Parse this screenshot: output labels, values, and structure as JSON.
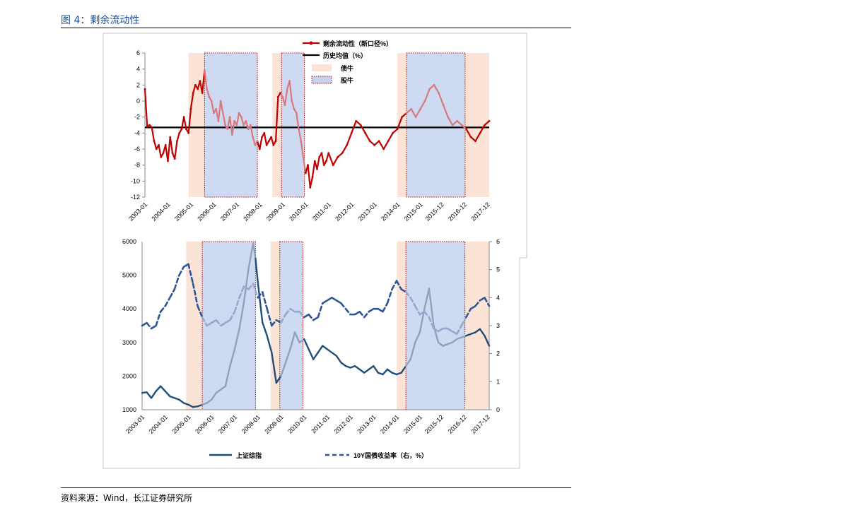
{
  "figure": {
    "title": "图 4：剩余流动性",
    "source": "资料来源：Wind，长江证券研究所"
  },
  "colors": {
    "liquidity": "#c00000",
    "liquidity_faded": "#d9797f",
    "hist_avg": "#000000",
    "index": "#1f4e79",
    "index_faded": "#8fa3b8",
    "yield": "#2f5597",
    "yield_faded": "#96a8cb",
    "bond_bull": "#fbe4d5",
    "stock_bull": "#c5d3ee",
    "stock_border": "#c00000"
  },
  "periods": {
    "bond_bull": [
      [
        2004.9,
        2005.6
      ],
      [
        2008.55,
        2009.0
      ],
      [
        2014.0,
        2014.4
      ],
      [
        2016.85,
        2017.9
      ],
      [
        2017.45,
        2018.0
      ]
    ],
    "stock_bull": [
      [
        2005.6,
        2007.9
      ],
      [
        2008.95,
        2009.95
      ],
      [
        2014.4,
        2016.95
      ]
    ]
  },
  "chart_data": [
    {
      "type": "line",
      "x_ticks": [
        "2003-01",
        "2004-01",
        "2005-01",
        "2006-01",
        "2007-01",
        "2008-01",
        "2009-01",
        "2010-01",
        "2011-01",
        "2012-01",
        "2013-01",
        "2014-01",
        "2015-01",
        "2015-12",
        "2016-12",
        "2017-12"
      ],
      "ylim": [
        -12,
        6
      ],
      "y_ticks": [
        "6",
        "4",
        "2",
        "0",
        "-2",
        "-4",
        "-6",
        "-8",
        "-10",
        "-12"
      ],
      "legend": [
        "剩余流动性（新口径%）",
        "历史均值（%）",
        "债牛",
        "股牛"
      ],
      "legend_position": "top",
      "series": [
        {
          "name": "剩余流动性（新口径%）",
          "x": [
            2003.0,
            2003.1,
            2003.2,
            2003.3,
            2003.4,
            2003.5,
            2003.6,
            2003.7,
            2003.8,
            2003.9,
            2004.0,
            2004.1,
            2004.2,
            2004.3,
            2004.4,
            2004.5,
            2004.6,
            2004.7,
            2004.8,
            2004.9,
            2005.0,
            2005.1,
            2005.2,
            2005.3,
            2005.4,
            2005.5,
            2005.6,
            2005.7,
            2005.8,
            2005.9,
            2006.0,
            2006.1,
            2006.2,
            2006.3,
            2006.4,
            2006.5,
            2006.6,
            2006.7,
            2006.8,
            2006.9,
            2007.0,
            2007.1,
            2007.2,
            2007.3,
            2007.4,
            2007.5,
            2007.6,
            2007.7,
            2007.8,
            2007.9,
            2008.0,
            2008.1,
            2008.2,
            2008.3,
            2008.4,
            2008.5,
            2008.6,
            2008.7,
            2008.8,
            2008.9,
            2009.0,
            2009.1,
            2009.2,
            2009.3,
            2009.4,
            2009.5,
            2009.6,
            2009.7,
            2009.8,
            2009.9,
            2010.0,
            2010.1,
            2010.2,
            2010.3,
            2010.4,
            2010.5,
            2010.6,
            2010.7,
            2010.8,
            2010.9,
            2011.0,
            2011.2,
            2011.4,
            2011.6,
            2011.8,
            2012.0,
            2012.2,
            2012.4,
            2012.6,
            2012.8,
            2013.0,
            2013.2,
            2013.4,
            2013.6,
            2013.8,
            2014.0,
            2014.2,
            2014.4,
            2014.6,
            2014.8,
            2015.0,
            2015.2,
            2015.4,
            2015.6,
            2015.8,
            2016.0,
            2016.2,
            2016.4,
            2016.6,
            2016.8,
            2017.0,
            2017.2,
            2017.4,
            2017.6,
            2017.8,
            2018.0
          ],
          "values": [
            1.5,
            -3.2,
            -3.0,
            -3.3,
            -5.0,
            -6.0,
            -5.5,
            -7.0,
            -6.5,
            -5.5,
            -7.5,
            -4.5,
            -6.5,
            -7.2,
            -5.0,
            -4.0,
            -3.5,
            -2.0,
            -3.5,
            -4.0,
            -1.0,
            1.0,
            2.0,
            1.5,
            2.5,
            1.0,
            3.8,
            1.5,
            0.5,
            0.0,
            -1.5,
            -1.0,
            -2.5,
            0.0,
            -1.5,
            -3.0,
            -3.5,
            -2.0,
            -4.2,
            -2.5,
            -3.0,
            -1.5,
            -2.0,
            -3.0,
            -2.5,
            -3.5,
            -3.0,
            -4.5,
            -5.5,
            -5.0,
            -6.0,
            -4.5,
            -4.0,
            -5.5,
            -5.0,
            -4.5,
            -5.5,
            -5.0,
            0.5,
            1.0,
            0.5,
            -0.5,
            1.5,
            2.5,
            0.0,
            -1.0,
            -1.5,
            -3.5,
            -5.0,
            -7.0,
            -9.0,
            -8.0,
            -10.8,
            -9.5,
            -7.5,
            -8.5,
            -7.0,
            -6.5,
            -8.0,
            -7.5,
            -6.5,
            -8.0,
            -7.0,
            -6.5,
            -5.5,
            -4.0,
            -2.5,
            -3.0,
            -4.0,
            -5.0,
            -5.5,
            -5.0,
            -6.0,
            -5.0,
            -4.0,
            -3.5,
            -2.0,
            -1.5,
            -1.0,
            -2.0,
            -1.0,
            0.0,
            1.5,
            2.0,
            1.0,
            -0.5,
            -2.0,
            -3.0,
            -2.5,
            -3.0,
            -3.5,
            -4.5,
            -5.0,
            -4.0,
            -3.0,
            -2.5
          ]
        },
        {
          "name": "历史均值（%）",
          "x": [
            2003.0,
            2018.0
          ],
          "values": [
            -3.3,
            -3.3
          ]
        }
      ]
    },
    {
      "type": "line",
      "x_ticks": [
        "2003-01",
        "2004-01",
        "2005-01",
        "2006-01",
        "2007-01",
        "2008-01",
        "2009-01",
        "2010-01",
        "2011-01",
        "2012-01",
        "2013-01",
        "2014-01",
        "2015-01",
        "2015-12",
        "2016-12",
        "2017-12"
      ],
      "ylim_left": [
        1000,
        6000
      ],
      "ylim_right": [
        0,
        6
      ],
      "y_ticks_left": [
        "6000",
        "5000",
        "4000",
        "3000",
        "2000",
        "1000"
      ],
      "y_ticks_right": [
        "6",
        "5",
        "4",
        "3",
        "2",
        "1",
        "0"
      ],
      "legend": [
        "上证综指",
        "10Y国债收益率（右，%）"
      ],
      "legend_position": "bottom",
      "series": [
        {
          "name": "上证综指",
          "x": [
            2003.0,
            2003.2,
            2003.4,
            2003.6,
            2003.8,
            2004.0,
            2004.2,
            2004.4,
            2004.6,
            2004.8,
            2005.0,
            2005.2,
            2005.4,
            2005.6,
            2005.8,
            2006.0,
            2006.2,
            2006.4,
            2006.6,
            2006.8,
            2007.0,
            2007.2,
            2007.4,
            2007.6,
            2007.8,
            2007.9,
            2008.0,
            2008.2,
            2008.4,
            2008.6,
            2008.8,
            2009.0,
            2009.2,
            2009.4,
            2009.6,
            2009.8,
            2010.0,
            2010.2,
            2010.4,
            2010.6,
            2010.8,
            2011.0,
            2011.2,
            2011.4,
            2011.6,
            2011.8,
            2012.0,
            2012.2,
            2012.4,
            2012.6,
            2012.8,
            2013.0,
            2013.2,
            2013.4,
            2013.6,
            2013.8,
            2014.0,
            2014.2,
            2014.4,
            2014.6,
            2014.8,
            2015.0,
            2015.2,
            2015.4,
            2015.6,
            2015.8,
            2016.0,
            2016.2,
            2016.4,
            2016.6,
            2016.8,
            2017.0,
            2017.2,
            2017.4,
            2017.6,
            2017.8,
            2018.0
          ],
          "values": [
            1500,
            1520,
            1350,
            1550,
            1700,
            1550,
            1400,
            1350,
            1300,
            1200,
            1150,
            1080,
            1100,
            1150,
            1200,
            1300,
            1500,
            1600,
            1700,
            2300,
            2800,
            3400,
            4200,
            5200,
            5950,
            5500,
            4800,
            3600,
            3200,
            2700,
            1800,
            2000,
            2400,
            2800,
            3300,
            3000,
            3100,
            2800,
            2500,
            2700,
            2900,
            2800,
            2700,
            2600,
            2400,
            2300,
            2250,
            2300,
            2200,
            2100,
            2200,
            2300,
            2100,
            2050,
            2200,
            2100,
            2050,
            2100,
            2300,
            2500,
            3000,
            3300,
            4000,
            4600,
            3500,
            3000,
            2900,
            2950,
            3000,
            3100,
            3150,
            3200,
            3250,
            3300,
            3400,
            3200,
            2900
          ]
        },
        {
          "name": "10Y国债收益率（右，%）",
          "x": [
            2003.0,
            2003.2,
            2003.4,
            2003.6,
            2003.8,
            2004.0,
            2004.2,
            2004.4,
            2004.6,
            2004.8,
            2005.0,
            2005.2,
            2005.4,
            2005.6,
            2005.8,
            2006.0,
            2006.2,
            2006.4,
            2006.6,
            2006.8,
            2007.0,
            2007.2,
            2007.4,
            2007.6,
            2007.8,
            2008.0,
            2008.2,
            2008.4,
            2008.6,
            2008.8,
            2009.0,
            2009.2,
            2009.4,
            2009.6,
            2009.8,
            2010.0,
            2010.2,
            2010.4,
            2010.6,
            2010.8,
            2011.0,
            2011.2,
            2011.4,
            2011.6,
            2011.8,
            2012.0,
            2012.2,
            2012.4,
            2012.6,
            2012.8,
            2013.0,
            2013.2,
            2013.4,
            2013.6,
            2013.8,
            2014.0,
            2014.2,
            2014.4,
            2014.6,
            2014.8,
            2015.0,
            2015.2,
            2015.4,
            2015.6,
            2015.8,
            2016.0,
            2016.2,
            2016.4,
            2016.6,
            2016.8,
            2017.0,
            2017.2,
            2017.4,
            2017.6,
            2017.8,
            2018.0
          ],
          "values": [
            3.0,
            3.1,
            2.9,
            3.0,
            3.5,
            3.7,
            4.0,
            4.3,
            4.8,
            5.1,
            5.2,
            4.5,
            3.7,
            3.3,
            3.0,
            3.1,
            3.2,
            3.0,
            3.1,
            3.2,
            3.5,
            4.0,
            4.4,
            4.3,
            4.5,
            4.0,
            4.2,
            3.6,
            3.0,
            3.2,
            3.1,
            3.4,
            3.6,
            3.5,
            3.5,
            3.3,
            3.4,
            3.2,
            3.3,
            3.8,
            3.9,
            4.0,
            3.9,
            3.8,
            3.6,
            3.4,
            3.4,
            3.5,
            3.3,
            3.5,
            3.6,
            3.6,
            3.5,
            3.8,
            4.3,
            4.6,
            4.3,
            4.2,
            4.0,
            3.7,
            3.4,
            3.5,
            3.3,
            2.9,
            2.8,
            2.9,
            2.9,
            2.8,
            2.7,
            3.0,
            3.3,
            3.6,
            3.7,
            3.9,
            4.0,
            3.7
          ]
        }
      ]
    }
  ]
}
